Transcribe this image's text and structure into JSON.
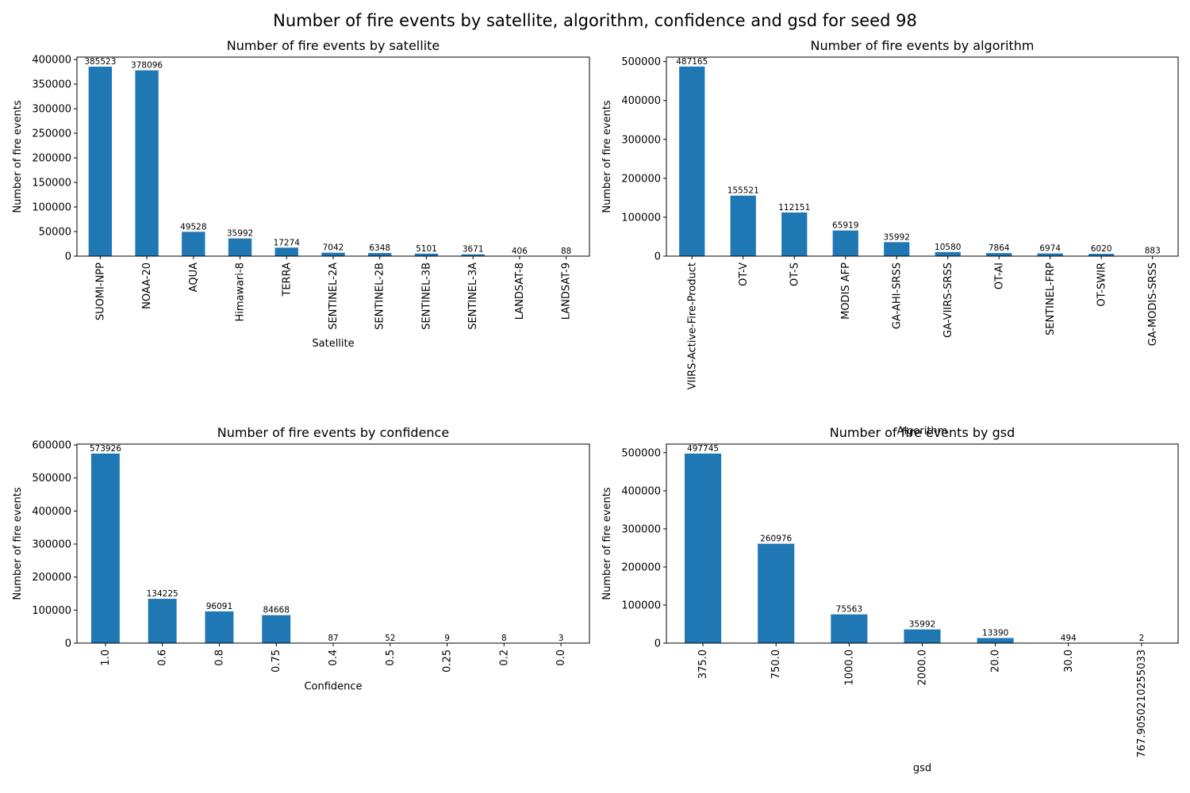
{
  "suptitle": "Number of fire events by satellite, algorithm, confidence and gsd for seed 98",
  "chart_data": [
    {
      "type": "bar",
      "title": "Number of fire events by satellite",
      "xlabel": "Satellite",
      "ylabel": "Number of fire events",
      "categories": [
        "SUOMI-NPP",
        "NOAA-20",
        "AQUA",
        "Himawari-8",
        "TERRA",
        "SENTINEL-2A",
        "SENTINEL-2B",
        "SENTINEL-3B",
        "SENTINEL-3A",
        "LANDSAT-8",
        "LANDSAT-9"
      ],
      "values": [
        385523,
        378096,
        49528,
        35992,
        17274,
        7042,
        6348,
        5101,
        3671,
        406,
        88
      ],
      "ylim": [
        0,
        405000
      ],
      "yticks": [
        0,
        50000,
        100000,
        150000,
        200000,
        250000,
        300000,
        350000,
        400000
      ],
      "color": "#1f77b4",
      "grid": false
    },
    {
      "type": "bar",
      "title": "Number of fire events by algorithm",
      "xlabel": "Algorithm",
      "ylabel": "Number of fire events",
      "categories": [
        "VIIRS-Active-Fire-Product",
        "OT-V",
        "OT-S",
        "MODIS AFP",
        "GA-AHI-SRSS",
        "GA-VIIRS-SRSS",
        "OT-AI",
        "SENTINEL-FRP",
        "OT-SWIR",
        "GA-MODIS-SRSS"
      ],
      "values": [
        487165,
        155521,
        112151,
        65919,
        35992,
        10580,
        7864,
        6974,
        6020,
        883
      ],
      "ylim": [
        0,
        511500
      ],
      "yticks": [
        0,
        100000,
        200000,
        300000,
        400000,
        500000
      ],
      "color": "#1f77b4",
      "grid": false
    },
    {
      "type": "bar",
      "title": "Number of fire events by confidence",
      "xlabel": "Confidence",
      "ylabel": "Number of fire events",
      "categories": [
        "1.0",
        "0.6",
        "0.8",
        "0.75",
        "0.4",
        "0.5",
        "0.25",
        "0.2",
        "0.0"
      ],
      "values": [
        573926,
        134225,
        96091,
        84668,
        87,
        52,
        9,
        8,
        3
      ],
      "ylim": [
        0,
        602600
      ],
      "yticks": [
        0,
        100000,
        200000,
        300000,
        400000,
        500000,
        600000
      ],
      "color": "#1f77b4",
      "grid": false
    },
    {
      "type": "bar",
      "title": "Number of fire events by gsd",
      "xlabel": "gsd",
      "ylabel": "Number of fire events",
      "categories": [
        "375.0",
        "750.0",
        "1000.0",
        "2000.0",
        "20.0",
        "30.0",
        "767.9050210255033"
      ],
      "values": [
        497745,
        260976,
        75563,
        35992,
        13390,
        494,
        2
      ],
      "ylim": [
        0,
        522600
      ],
      "yticks": [
        0,
        100000,
        200000,
        300000,
        400000,
        500000
      ],
      "color": "#1f77b4",
      "grid": false
    }
  ]
}
